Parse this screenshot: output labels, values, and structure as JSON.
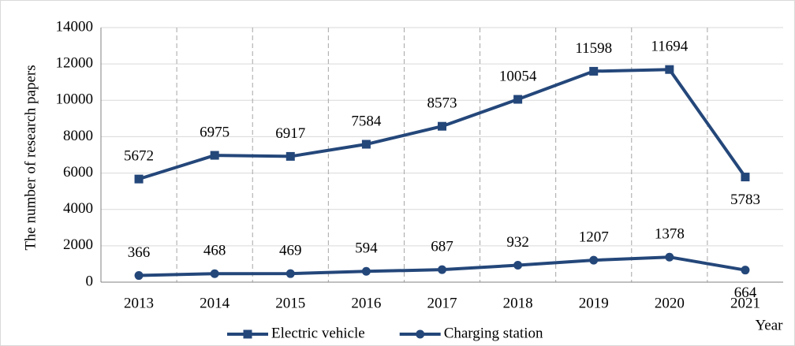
{
  "chart_data": {
    "type": "line",
    "x_label": "Year",
    "y_label": "The number of research papers",
    "categories": [
      "2013",
      "2014",
      "2015",
      "2016",
      "2017",
      "2018",
      "2019",
      "2020",
      "2021"
    ],
    "series": [
      {
        "name": "Electric vehicle",
        "color": "#24477a",
        "marker": "square",
        "values": [
          5672,
          6975,
          6917,
          7584,
          8573,
          10054,
          11598,
          11694,
          5783
        ]
      },
      {
        "name": "Charging station",
        "color": "#24477a",
        "marker": "circle",
        "values": [
          366,
          468,
          469,
          594,
          687,
          932,
          1207,
          1378,
          664
        ]
      }
    ],
    "ylim": [
      0,
      14000
    ],
    "yticks": [
      0,
      2000,
      4000,
      6000,
      8000,
      10000,
      12000,
      14000
    ],
    "grid": true,
    "legend": "bottom"
  }
}
